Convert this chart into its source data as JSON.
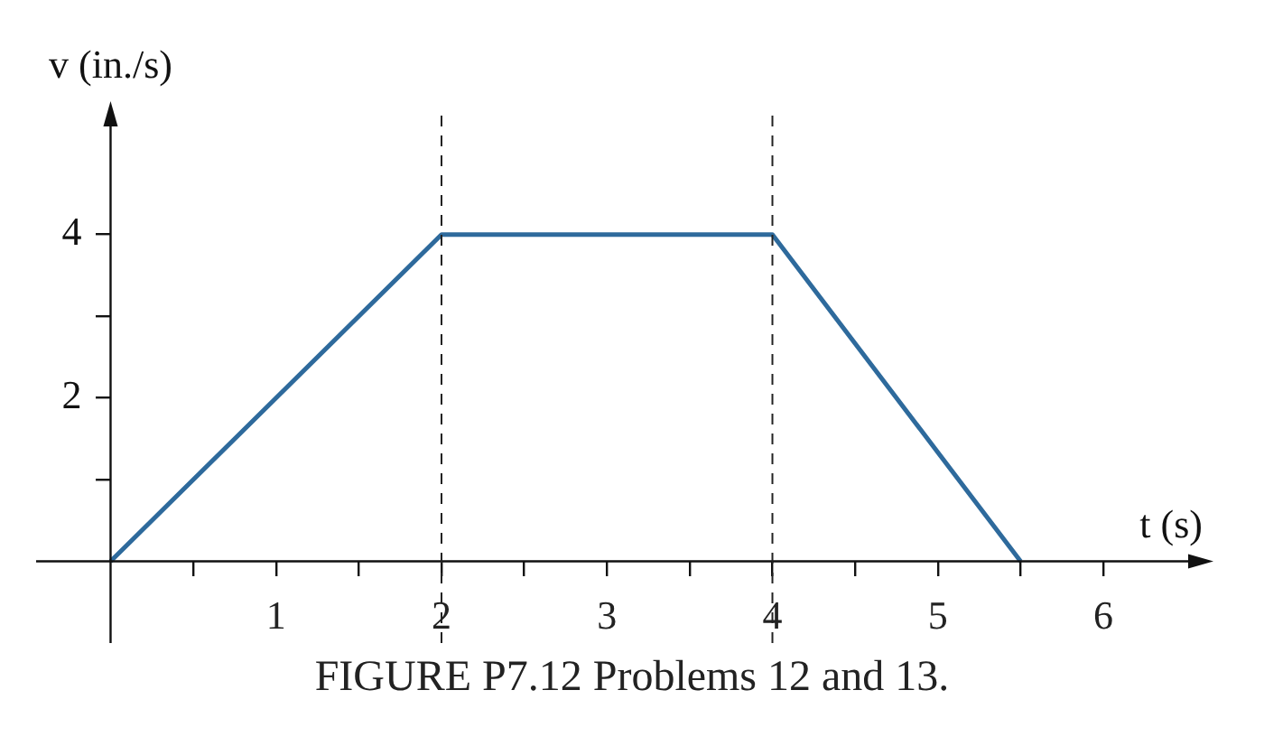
{
  "chart_data": {
    "type": "line",
    "xlabel": "t (s)",
    "ylabel": "v (in./s)",
    "x": [
      0,
      2,
      4,
      5.5
    ],
    "series": [
      {
        "color": "#2e6a9c",
        "values": [
          0,
          4,
          4,
          0
        ]
      }
    ],
    "xlim": [
      -0.45,
      6.6
    ],
    "ylim": [
      -1,
      5.5
    ],
    "xticks": [
      {
        "value": 0.5,
        "label": null
      },
      1,
      {
        "value": 1.5,
        "label": null
      },
      2,
      {
        "value": 2.5,
        "label": null
      },
      3,
      {
        "value": 3.5,
        "label": null
      },
      4,
      {
        "value": 4.5,
        "label": null
      },
      5,
      {
        "value": 5.5,
        "label": null
      },
      6
    ],
    "yticks": [
      {
        "value": 1,
        "label": null
      },
      2,
      {
        "value": 3,
        "label": null
      },
      4
    ],
    "ref_lines": [
      {
        "axis": "x",
        "value": 2,
        "label": null,
        "line_style": "dashed"
      },
      {
        "axis": "x",
        "value": 4,
        "label": null,
        "line_style": "dashed"
      }
    ],
    "annotations": [
      "FIGURE P7.12 Problems 12 and 13."
    ],
    "grid": false,
    "legend": false,
    "marker": "none",
    "line_style": "solid"
  }
}
